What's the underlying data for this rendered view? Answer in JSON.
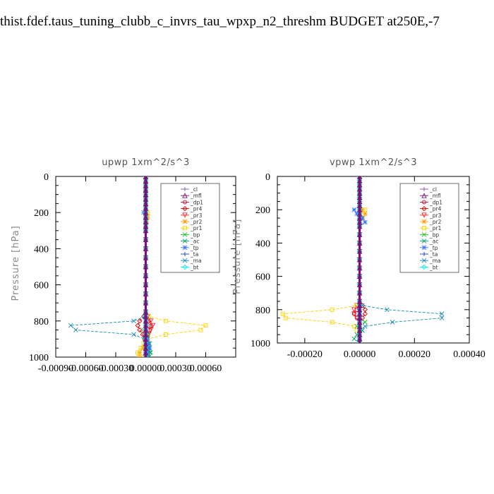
{
  "page": {
    "title": "thist.fdef.taus_tuning_clubb_c_invrs_tau_wpxp_n2_threshm  BUDGET at250E,-7"
  },
  "chart_data": [
    {
      "type": "line",
      "title": "upwp   1xm^2/s^3",
      "ylabel": "Pressure [hPa]",
      "xlabel": "",
      "ylim": [
        1000,
        0
      ],
      "xlim": [
        -0.0009,
        0.0009
      ],
      "xticks": [
        "-0.00090",
        "-0.00060",
        "-0.00030",
        "0.00000",
        "0.00030",
        "0.00060"
      ],
      "xtick_values": [
        -0.0009,
        -0.0006,
        -0.0003,
        0.0,
        0.0003,
        0.0006
      ],
      "yticks": [
        "0",
        "200",
        "400",
        "600",
        "800",
        "1000"
      ],
      "ytick_values": [
        0,
        200,
        400,
        600,
        800,
        1000
      ],
      "legend_position": "top-right",
      "y": [
        0,
        25,
        50,
        75,
        100,
        125,
        150,
        175,
        200,
        225,
        250,
        275,
        300,
        350,
        400,
        450,
        500,
        550,
        600,
        650,
        700,
        750,
        775,
        800,
        825,
        850,
        875,
        900,
        925,
        950,
        975,
        1000
      ],
      "series": [
        {
          "name": "_cl",
          "color": "#8a55b8",
          "marker": "plus",
          "values": [
            0,
            0,
            0,
            0,
            0,
            0,
            0,
            0,
            0,
            0,
            0,
            0,
            0,
            0,
            0,
            0,
            0,
            0,
            0,
            0,
            0,
            0,
            0,
            0,
            0,
            0,
            0,
            0,
            0,
            0,
            0,
            0
          ]
        },
        {
          "name": "_mfl",
          "color": "#7a0f7a",
          "marker": "triangle",
          "values": [
            0,
            0,
            0,
            0,
            0,
            0,
            0,
            0,
            0,
            0,
            0,
            0,
            0,
            0,
            0,
            0,
            0,
            0,
            0,
            0,
            0,
            0,
            0,
            0,
            0,
            0,
            0,
            0,
            0,
            0,
            0,
            0
          ]
        },
        {
          "name": "_dp1",
          "color": "#c00030",
          "marker": "circle",
          "values": [
            0,
            0,
            0,
            0,
            0,
            0,
            0,
            0,
            0,
            0,
            0,
            0,
            0,
            0,
            0,
            0,
            0,
            0,
            0,
            0,
            0,
            0,
            1e-05,
            3e-05,
            5e-05,
            4e-05,
            2e-05,
            1e-05,
            0,
            0,
            0,
            0
          ]
        },
        {
          "name": "_pr4",
          "color": "#d80000",
          "marker": "diamond",
          "values": [
            0,
            0,
            0,
            0,
            0,
            0,
            0,
            0,
            0,
            0,
            0,
            0,
            0,
            0,
            0,
            0,
            0,
            0,
            0,
            0,
            0,
            0,
            -2e-05,
            -6e-05,
            -8e-05,
            -6e-05,
            -3e-05,
            -1e-05,
            0,
            0,
            0,
            0
          ]
        },
        {
          "name": "_pr3",
          "color": "#ff2020",
          "marker": "tri-down",
          "values": [
            0,
            0,
            0,
            0,
            0,
            0,
            0,
            0,
            0,
            0,
            0,
            0,
            0,
            0,
            0,
            0,
            0,
            0,
            0,
            0,
            0,
            0,
            2e-05,
            5e-05,
            7e-05,
            5e-05,
            3e-05,
            1e-05,
            0,
            0,
            0,
            0
          ]
        },
        {
          "name": "_pr2",
          "color": "#ff9900",
          "marker": "star",
          "values": [
            0,
            0,
            0,
            0,
            0,
            0,
            0,
            0,
            1e-05,
            2e-05,
            1e-05,
            0,
            0,
            0,
            0,
            0,
            0,
            0,
            0,
            0,
            0,
            0,
            0,
            0,
            0,
            0,
            0,
            0,
            0,
            -3e-05,
            -6e-05,
            -5e-05
          ]
        },
        {
          "name": "_pr1",
          "color": "#ffd000",
          "marker": "square",
          "values": [
            0,
            0,
            0,
            0,
            0,
            0,
            0,
            0,
            2e-05,
            1e-05,
            0,
            0,
            0,
            0,
            0,
            0,
            0,
            0,
            0,
            0,
            0,
            0,
            3e-05,
            0.0002,
            0.0006,
            0.00055,
            0.0002,
            2e-05,
            -2e-05,
            -5e-05,
            -8e-05,
            -7e-05
          ]
        },
        {
          "name": "_bp",
          "color": "#20c020",
          "marker": "x",
          "values": [
            0,
            0,
            0,
            0,
            0,
            0,
            0,
            0,
            0,
            0,
            0,
            0,
            0,
            0,
            0,
            0,
            0,
            0,
            0,
            0,
            0,
            0,
            0,
            0,
            1e-05,
            -2e-05,
            2e-05,
            1e-05,
            4e-05,
            3e-05,
            5e-05,
            3e-05
          ]
        },
        {
          "name": "_ac",
          "color": "#00a060",
          "marker": "x",
          "values": [
            0,
            0,
            0,
            0,
            0,
            0,
            0,
            0,
            0,
            0,
            0,
            0,
            0,
            0,
            0,
            0,
            0,
            0,
            0,
            0,
            0,
            0,
            0,
            0,
            0,
            0,
            0,
            0,
            2e-05,
            3e-05,
            4e-05,
            3e-05
          ]
        },
        {
          "name": "_tp",
          "color": "#3070ff",
          "marker": "star",
          "values": [
            0,
            0,
            0,
            0,
            0,
            0,
            0,
            0,
            -2e-05,
            0,
            0,
            0,
            0,
            0,
            0,
            0,
            0,
            0,
            0,
            0,
            0,
            0,
            0,
            0,
            0,
            0,
            0,
            2e-05,
            3e-05,
            4e-05,
            2e-05,
            1e-05
          ]
        },
        {
          "name": "_ta",
          "color": "#2040d0",
          "marker": "plus",
          "values": [
            0,
            0,
            0,
            0,
            0,
            0,
            0,
            0,
            0,
            0,
            0,
            0,
            0,
            0,
            0,
            0,
            0,
            0,
            0,
            0,
            0,
            0,
            0,
            0,
            0,
            0,
            0,
            0,
            0,
            0,
            0,
            0
          ]
        },
        {
          "name": "_ma",
          "color": "#1a8ab0",
          "marker": "x",
          "values": [
            0,
            0,
            0,
            0,
            0,
            0,
            0,
            0,
            0,
            0,
            0,
            0,
            0,
            0,
            0,
            0,
            0,
            0,
            0,
            0,
            0,
            0,
            -1e-05,
            -0.00012,
            -0.00075,
            -0.0007,
            -0.00012,
            -1e-05,
            0,
            0,
            0,
            0
          ]
        },
        {
          "name": "_bt",
          "color": "#00e8f0",
          "marker": "diamond",
          "values": [
            0,
            0,
            0,
            0,
            0,
            0,
            0,
            0,
            0,
            0,
            0,
            0,
            0,
            0,
            0,
            0,
            0,
            0,
            0,
            0,
            0,
            0,
            0,
            0,
            0,
            0,
            0,
            0,
            0,
            0,
            0,
            0
          ]
        }
      ]
    },
    {
      "type": "line",
      "title": "vpwp   1xm^2/s^3",
      "ylabel": "Pressure [hPa]",
      "xlabel": "",
      "ylim": [
        1000,
        0
      ],
      "xlim": [
        -0.0003,
        0.0004
      ],
      "xticks": [
        "-0.00020",
        "0.00000",
        "0.00020",
        "0.00040"
      ],
      "xtick_values": [
        -0.0002,
        0.0,
        0.0002,
        0.0004
      ],
      "yticks": [
        "0",
        "200",
        "400",
        "600",
        "800",
        "1000"
      ],
      "ytick_values": [
        0,
        200,
        400,
        600,
        800,
        1000
      ],
      "legend_position": "top-right",
      "y": [
        0,
        25,
        50,
        75,
        100,
        125,
        150,
        175,
        200,
        225,
        250,
        275,
        300,
        350,
        400,
        450,
        500,
        550,
        600,
        650,
        700,
        750,
        775,
        800,
        825,
        850,
        875,
        900,
        925,
        950,
        975,
        1000
      ],
      "series": [
        {
          "name": "_cl",
          "color": "#8a55b8",
          "marker": "plus",
          "values": [
            0,
            0,
            0,
            0,
            0,
            0,
            0,
            0,
            0,
            0,
            0,
            0,
            0,
            0,
            0,
            0,
            0,
            0,
            0,
            0,
            0,
            0,
            0,
            0,
            0,
            0,
            0,
            0,
            0,
            0,
            0,
            0
          ]
        },
        {
          "name": "_mfl",
          "color": "#7a0f7a",
          "marker": "triangle",
          "values": [
            0,
            0,
            0,
            0,
            0,
            0,
            0,
            0,
            0,
            0,
            0,
            0,
            0,
            0,
            0,
            0,
            0,
            0,
            0,
            0,
            0,
            0,
            0,
            0,
            0,
            0,
            0,
            0,
            0,
            0,
            0,
            0
          ]
        },
        {
          "name": "_dp1",
          "color": "#c00030",
          "marker": "circle",
          "values": [
            0,
            0,
            0,
            0,
            0,
            0,
            0,
            0,
            0,
            0,
            0,
            0,
            0,
            0,
            0,
            0,
            0,
            0,
            0,
            0,
            0,
            0,
            0,
            -1e-05,
            -2e-05,
            -1e-05,
            0,
            0,
            0,
            0,
            0,
            0
          ]
        },
        {
          "name": "_pr4",
          "color": "#d80000",
          "marker": "diamond",
          "values": [
            0,
            0,
            0,
            0,
            0,
            0,
            0,
            0,
            0,
            0,
            0,
            0,
            0,
            0,
            0,
            0,
            0,
            0,
            0,
            0,
            0,
            0,
            1e-05,
            2e-05,
            2e-05,
            1e-05,
            0,
            0,
            0,
            0,
            0,
            0
          ]
        },
        {
          "name": "_pr3",
          "color": "#ff2020",
          "marker": "tri-down",
          "values": [
            0,
            0,
            0,
            0,
            0,
            0,
            0,
            0,
            0,
            0,
            0,
            0,
            0,
            0,
            0,
            0,
            0,
            0,
            0,
            0,
            0,
            0,
            -1e-05,
            -2e-05,
            -2e-05,
            -1e-05,
            0,
            0,
            0,
            0,
            0,
            0
          ]
        },
        {
          "name": "_pr2",
          "color": "#ff9900",
          "marker": "star",
          "values": [
            0,
            0,
            0,
            0,
            0,
            0,
            0,
            0,
            1e-05,
            2e-05,
            1e-05,
            0,
            0,
            0,
            0,
            0,
            0,
            0,
            0,
            0,
            0,
            0,
            0,
            0,
            0,
            0,
            0,
            0,
            0,
            0,
            0,
            0
          ]
        },
        {
          "name": "_pr1",
          "color": "#ffd000",
          "marker": "square",
          "values": [
            0,
            0,
            0,
            0,
            0,
            0,
            0,
            0,
            2e-05,
            1e-05,
            1e-05,
            0,
            0,
            0,
            0,
            0,
            0,
            0,
            0,
            0,
            0,
            0,
            -1e-05,
            -0.0001,
            -0.00028,
            -0.00027,
            -0.0001,
            -2e-05,
            -1e-05,
            0,
            0,
            0
          ]
        },
        {
          "name": "_bp",
          "color": "#20c020",
          "marker": "x",
          "values": [
            0,
            0,
            0,
            0,
            0,
            0,
            0,
            0,
            0,
            0,
            0,
            0,
            0,
            0,
            0,
            0,
            0,
            0,
            0,
            0,
            0,
            0,
            0,
            0,
            0,
            0,
            2e-05,
            -1e-05,
            1e-05,
            0,
            0,
            0
          ]
        },
        {
          "name": "_ac",
          "color": "#00a060",
          "marker": "x",
          "values": [
            0,
            0,
            0,
            0,
            0,
            0,
            0,
            0,
            0,
            0,
            0,
            0,
            0,
            0,
            0,
            0,
            0,
            0,
            0,
            0,
            0,
            0,
            0,
            0,
            0,
            0,
            0,
            0,
            1e-05,
            -1e-05,
            -2e-05,
            0
          ]
        },
        {
          "name": "_tp",
          "color": "#3070ff",
          "marker": "star",
          "values": [
            0,
            0,
            0,
            0,
            0,
            0,
            0,
            0,
            -2e-05,
            -1e-05,
            1e-05,
            2e-05,
            0,
            0,
            0,
            0,
            0,
            0,
            0,
            0,
            0,
            0,
            0,
            0,
            0,
            0,
            0,
            0,
            0,
            0,
            0,
            0
          ]
        },
        {
          "name": "_ta",
          "color": "#2040d0",
          "marker": "plus",
          "values": [
            0,
            0,
            0,
            0,
            0,
            0,
            0,
            0,
            0,
            0,
            0,
            0,
            0,
            0,
            0,
            0,
            0,
            0,
            0,
            0,
            0,
            0,
            0,
            0,
            0,
            0,
            0,
            0,
            0,
            0,
            0,
            0
          ]
        },
        {
          "name": "_ma",
          "color": "#1a8ab0",
          "marker": "x",
          "values": [
            0,
            0,
            0,
            0,
            0,
            0,
            0,
            0,
            0,
            0,
            0,
            0,
            0,
            0,
            0,
            0,
            0,
            0,
            0,
            0,
            0,
            0,
            1e-05,
            0.0001,
            0.0003,
            0.0003,
            0.00012,
            2e-05,
            0,
            0,
            0,
            0
          ]
        },
        {
          "name": "_bt",
          "color": "#00e8f0",
          "marker": "diamond",
          "values": [
            0,
            0,
            0,
            0,
            0,
            0,
            0,
            0,
            0,
            0,
            0,
            0,
            0,
            0,
            0,
            0,
            0,
            0,
            0,
            0,
            0,
            0,
            0,
            0,
            0,
            0,
            0,
            0,
            0,
            0,
            0,
            0
          ]
        }
      ]
    }
  ]
}
